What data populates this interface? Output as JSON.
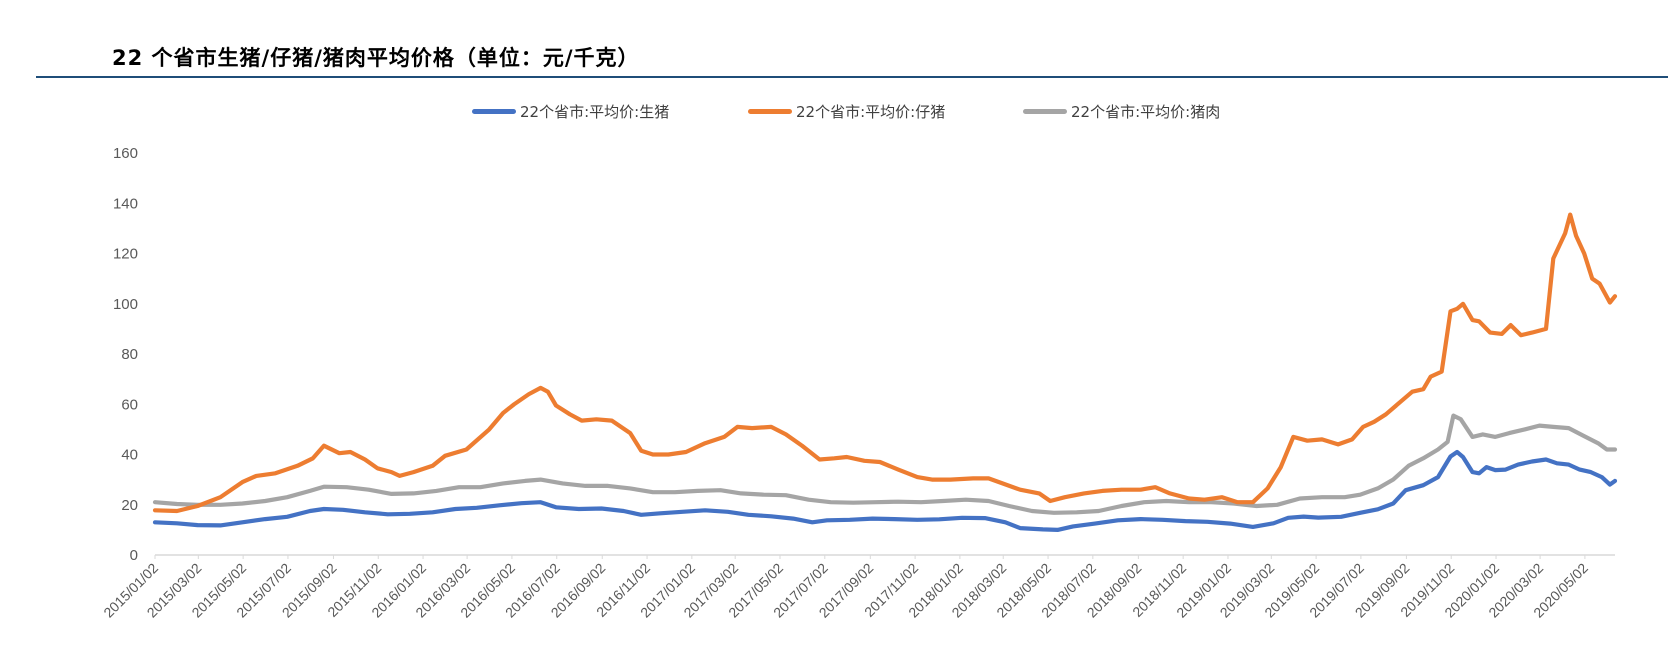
{
  "title": "22 个省市生猪/仔猪/猪肉平均价格（单位：元/千克）",
  "colors": {
    "hog": "#4472c4",
    "piglet": "#ed7d31",
    "pork": "#a5a5a5",
    "axis": "#d9d9d9",
    "title_rule": "#1f4e79"
  },
  "chart_data": {
    "type": "line",
    "title": "22 个省市生猪/仔猪/猪肉平均价格（单位：元/千克）",
    "xlabel": "",
    "ylabel": "",
    "ylim": [
      0,
      160
    ],
    "yticks": [
      0,
      20,
      40,
      60,
      80,
      100,
      120,
      140,
      160
    ],
    "grid": false,
    "legend_position": "top-center",
    "x_range": [
      "2015/01/02",
      "2020/06/12"
    ],
    "xtick_labels": [
      "2015/01/02",
      "2015/03/02",
      "2015/05/02",
      "2015/07/02",
      "2015/09/02",
      "2015/11/02",
      "2016/01/02",
      "2016/03/02",
      "2016/05/02",
      "2016/07/02",
      "2016/09/02",
      "2016/11/02",
      "2017/01/02",
      "2017/03/02",
      "2017/05/02",
      "2017/07/02",
      "2017/09/02",
      "2017/11/02",
      "2018/01/02",
      "2018/03/02",
      "2018/05/02",
      "2018/07/02",
      "2018/09/02",
      "2018/11/02",
      "2019/01/02",
      "2019/03/02",
      "2019/05/02",
      "2019/07/02",
      "2019/09/02",
      "2019/11/02",
      "2020/01/02",
      "2020/03/02",
      "2020/05/02"
    ],
    "series": [
      {
        "name": "22个省市:平均价:生猪",
        "color_key": "hog",
        "points": [
          [
            "2015/01/02",
            13.0
          ],
          [
            "2015/02/01",
            12.6
          ],
          [
            "2015/03/01",
            11.9
          ],
          [
            "2015/04/01",
            11.8
          ],
          [
            "2015/05/01",
            13.0
          ],
          [
            "2015/06/01",
            14.3
          ],
          [
            "2015/07/01",
            15.2
          ],
          [
            "2015/08/01",
            17.5
          ],
          [
            "2015/08/20",
            18.3
          ],
          [
            "2015/09/15",
            18.0
          ],
          [
            "2015/10/15",
            17.0
          ],
          [
            "2015/11/15",
            16.2
          ],
          [
            "2015/12/15",
            16.4
          ],
          [
            "2016/01/15",
            17.0
          ],
          [
            "2016/02/15",
            18.3
          ],
          [
            "2016/03/15",
            18.8
          ],
          [
            "2016/04/15",
            19.8
          ],
          [
            "2016/05/15",
            20.6
          ],
          [
            "2016/06/10",
            21.0
          ],
          [
            "2016/07/01",
            19.0
          ],
          [
            "2016/08/01",
            18.3
          ],
          [
            "2016/09/01",
            18.5
          ],
          [
            "2016/10/01",
            17.5
          ],
          [
            "2016/10/25",
            16.0
          ],
          [
            "2016/11/20",
            16.6
          ],
          [
            "2016/12/20",
            17.2
          ],
          [
            "2017/01/20",
            17.8
          ],
          [
            "2017/02/20",
            17.2
          ],
          [
            "2017/03/20",
            16.0
          ],
          [
            "2017/04/20",
            15.4
          ],
          [
            "2017/05/20",
            14.5
          ],
          [
            "2017/06/15",
            13.0
          ],
          [
            "2017/07/05",
            13.8
          ],
          [
            "2017/08/05",
            14.0
          ],
          [
            "2017/09/05",
            14.5
          ],
          [
            "2017/10/05",
            14.3
          ],
          [
            "2017/11/05",
            14.0
          ],
          [
            "2017/12/05",
            14.2
          ],
          [
            "2018/01/05",
            14.8
          ],
          [
            "2018/02/05",
            14.7
          ],
          [
            "2018/03/05",
            13.0
          ],
          [
            "2018/03/25",
            10.7
          ],
          [
            "2018/04/25",
            10.2
          ],
          [
            "2018/05/15",
            10.0
          ],
          [
            "2018/06/05",
            11.4
          ],
          [
            "2018/07/05",
            12.5
          ],
          [
            "2018/08/05",
            13.8
          ],
          [
            "2018/09/05",
            14.3
          ],
          [
            "2018/10/05",
            14.0
          ],
          [
            "2018/11/05",
            13.5
          ],
          [
            "2018/12/05",
            13.2
          ],
          [
            "2019/01/05",
            12.5
          ],
          [
            "2019/02/05",
            11.2
          ],
          [
            "2019/03/05",
            12.6
          ],
          [
            "2019/03/25",
            14.8
          ],
          [
            "2019/04/15",
            15.3
          ],
          [
            "2019/05/05",
            14.9
          ],
          [
            "2019/06/05",
            15.2
          ],
          [
            "2019/07/01",
            16.8
          ],
          [
            "2019/07/25",
            18.2
          ],
          [
            "2019/08/15",
            20.5
          ],
          [
            "2019/09/01",
            25.8
          ],
          [
            "2019/09/25",
            27.8
          ],
          [
            "2019/10/15",
            31.0
          ],
          [
            "2019/11/01",
            39.2
          ],
          [
            "2019/11/10",
            41.0
          ],
          [
            "2019/11/18",
            39.0
          ],
          [
            "2019/12/01",
            33.0
          ],
          [
            "2019/12/10",
            32.5
          ],
          [
            "2019/12/20",
            35.0
          ],
          [
            "2020/01/01",
            33.8
          ],
          [
            "2020/01/15",
            34.0
          ],
          [
            "2020/02/01",
            36.0
          ],
          [
            "2020/02/20",
            37.2
          ],
          [
            "2020/03/10",
            38.0
          ],
          [
            "2020/03/25",
            36.5
          ],
          [
            "2020/04/10",
            36.0
          ],
          [
            "2020/04/25",
            34.0
          ],
          [
            "2020/05/10",
            33.0
          ],
          [
            "2020/05/25",
            31.0
          ],
          [
            "2020/06/05",
            28.0
          ],
          [
            "2020/06/12",
            29.5
          ]
        ]
      },
      {
        "name": "22个省市:平均价:仔猪",
        "color_key": "piglet",
        "points": [
          [
            "2015/01/02",
            17.8
          ],
          [
            "2015/02/01",
            17.5
          ],
          [
            "2015/03/01",
            19.5
          ],
          [
            "2015/04/01",
            23.0
          ],
          [
            "2015/05/01",
            29.0
          ],
          [
            "2015/05/20",
            31.5
          ],
          [
            "2015/06/15",
            32.5
          ],
          [
            "2015/07/15",
            35.5
          ],
          [
            "2015/08/05",
            38.5
          ],
          [
            "2015/08/20",
            43.5
          ],
          [
            "2015/09/10",
            40.5
          ],
          [
            "2015/09/25",
            41.0
          ],
          [
            "2015/10/15",
            38.0
          ],
          [
            "2015/11/01",
            34.5
          ],
          [
            "2015/11/20",
            33.0
          ],
          [
            "2015/12/01",
            31.5
          ],
          [
            "2015/12/20",
            33.0
          ],
          [
            "2016/01/15",
            35.5
          ],
          [
            "2016/02/01",
            39.5
          ],
          [
            "2016/03/01",
            42.0
          ],
          [
            "2016/04/01",
            50.0
          ],
          [
            "2016/04/20",
            56.5
          ],
          [
            "2016/05/05",
            60.0
          ],
          [
            "2016/05/25",
            64.0
          ],
          [
            "2016/06/10",
            66.5
          ],
          [
            "2016/06/20",
            65.0
          ],
          [
            "2016/07/01",
            59.5
          ],
          [
            "2016/07/20",
            56.0
          ],
          [
            "2016/08/05",
            53.5
          ],
          [
            "2016/08/25",
            54.0
          ],
          [
            "2016/09/15",
            53.5
          ],
          [
            "2016/10/10",
            48.5
          ],
          [
            "2016/10/25",
            41.5
          ],
          [
            "2016/11/10",
            40.0
          ],
          [
            "2016/12/01",
            40.0
          ],
          [
            "2016/12/25",
            41.0
          ],
          [
            "2017/01/20",
            44.5
          ],
          [
            "2017/02/15",
            47.0
          ],
          [
            "2017/03/05",
            51.0
          ],
          [
            "2017/03/25",
            50.5
          ],
          [
            "2017/04/20",
            51.0
          ],
          [
            "2017/05/10",
            48.0
          ],
          [
            "2017/06/01",
            43.5
          ],
          [
            "2017/06/25",
            38.0
          ],
          [
            "2017/07/15",
            38.5
          ],
          [
            "2017/08/01",
            39.0
          ],
          [
            "2017/08/25",
            37.5
          ],
          [
            "2017/09/15",
            37.0
          ],
          [
            "2017/10/10",
            34.0
          ],
          [
            "2017/11/05",
            31.0
          ],
          [
            "2017/11/25",
            30.0
          ],
          [
            "2017/12/20",
            30.0
          ],
          [
            "2018/01/20",
            30.5
          ],
          [
            "2018/02/10",
            30.5
          ],
          [
            "2018/03/01",
            28.5
          ],
          [
            "2018/03/25",
            26.0
          ],
          [
            "2018/04/20",
            24.5
          ],
          [
            "2018/05/05",
            21.5
          ],
          [
            "2018/05/25",
            23.0
          ],
          [
            "2018/06/20",
            24.5
          ],
          [
            "2018/07/15",
            25.5
          ],
          [
            "2018/08/10",
            26.0
          ],
          [
            "2018/09/05",
            26.0
          ],
          [
            "2018/09/25",
            27.0
          ],
          [
            "2018/10/15",
            24.5
          ],
          [
            "2018/11/10",
            22.5
          ],
          [
            "2018/12/01",
            22.0
          ],
          [
            "2018/12/25",
            23.0
          ],
          [
            "2019/01/15",
            21.0
          ],
          [
            "2019/02/05",
            21.0
          ],
          [
            "2019/02/25",
            26.5
          ],
          [
            "2019/03/15",
            35.0
          ],
          [
            "2019/04/01",
            47.0
          ],
          [
            "2019/04/20",
            45.5
          ],
          [
            "2019/05/10",
            46.0
          ],
          [
            "2019/06/01",
            44.0
          ],
          [
            "2019/06/20",
            46.0
          ],
          [
            "2019/07/05",
            51.0
          ],
          [
            "2019/07/20",
            53.0
          ],
          [
            "2019/08/05",
            56.0
          ],
          [
            "2019/08/25",
            61.0
          ],
          [
            "2019/09/10",
            65.0
          ],
          [
            "2019/09/25",
            66.0
          ],
          [
            "2019/10/05",
            71.0
          ],
          [
            "2019/10/20",
            73.0
          ],
          [
            "2019/11/01",
            97.0
          ],
          [
            "2019/11/10",
            98.0
          ],
          [
            "2019/11/18",
            100.0
          ],
          [
            "2019/12/01",
            93.5
          ],
          [
            "2019/12/10",
            93.0
          ],
          [
            "2019/12/25",
            88.5
          ],
          [
            "2020/01/10",
            88.0
          ],
          [
            "2020/01/22",
            91.5
          ],
          [
            "2020/02/05",
            87.5
          ],
          [
            "2020/02/20",
            88.5
          ],
          [
            "2020/03/10",
            90.0
          ],
          [
            "2020/03/20",
            118.0
          ],
          [
            "2020/04/05",
            128.0
          ],
          [
            "2020/04/12",
            135.5
          ],
          [
            "2020/04/20",
            127.0
          ],
          [
            "2020/05/01",
            120.0
          ],
          [
            "2020/05/12",
            110.0
          ],
          [
            "2020/05/22",
            108.0
          ],
          [
            "2020/06/05",
            100.5
          ],
          [
            "2020/06/12",
            103.0
          ]
        ]
      },
      {
        "name": "22个省市:平均价:猪肉",
        "color_key": "pork",
        "points": [
          [
            "2015/01/02",
            21.0
          ],
          [
            "2015/02/01",
            20.3
          ],
          [
            "2015/03/01",
            20.0
          ],
          [
            "2015/04/01",
            20.0
          ],
          [
            "2015/05/01",
            20.5
          ],
          [
            "2015/06/01",
            21.5
          ],
          [
            "2015/07/01",
            23.0
          ],
          [
            "2015/08/01",
            25.5
          ],
          [
            "2015/08/20",
            27.2
          ],
          [
            "2015/09/20",
            27.0
          ],
          [
            "2015/10/20",
            26.0
          ],
          [
            "2015/11/20",
            24.3
          ],
          [
            "2015/12/20",
            24.5
          ],
          [
            "2016/01/20",
            25.5
          ],
          [
            "2016/02/20",
            27.0
          ],
          [
            "2016/03/20",
            27.0
          ],
          [
            "2016/04/20",
            28.5
          ],
          [
            "2016/05/20",
            29.5
          ],
          [
            "2016/06/10",
            30.0
          ],
          [
            "2016/07/10",
            28.5
          ],
          [
            "2016/08/10",
            27.5
          ],
          [
            "2016/09/10",
            27.5
          ],
          [
            "2016/10/10",
            26.5
          ],
          [
            "2016/11/10",
            25.0
          ],
          [
            "2016/12/10",
            25.0
          ],
          [
            "2017/01/10",
            25.5
          ],
          [
            "2017/02/10",
            25.8
          ],
          [
            "2017/03/10",
            24.5
          ],
          [
            "2017/04/10",
            24.0
          ],
          [
            "2017/05/10",
            23.8
          ],
          [
            "2017/06/10",
            22.0
          ],
          [
            "2017/07/10",
            21.0
          ],
          [
            "2017/08/10",
            20.8
          ],
          [
            "2017/09/10",
            21.0
          ],
          [
            "2017/10/10",
            21.2
          ],
          [
            "2017/11/10",
            21.0
          ],
          [
            "2017/12/10",
            21.5
          ],
          [
            "2018/01/10",
            22.0
          ],
          [
            "2018/02/10",
            21.5
          ],
          [
            "2018/03/10",
            19.5
          ],
          [
            "2018/04/10",
            17.5
          ],
          [
            "2018/05/10",
            16.8
          ],
          [
            "2018/06/10",
            17.0
          ],
          [
            "2018/07/10",
            17.5
          ],
          [
            "2018/08/10",
            19.5
          ],
          [
            "2018/09/10",
            21.0
          ],
          [
            "2018/10/10",
            21.5
          ],
          [
            "2018/11/10",
            21.0
          ],
          [
            "2018/12/10",
            21.0
          ],
          [
            "2019/01/10",
            20.5
          ],
          [
            "2019/02/10",
            19.5
          ],
          [
            "2019/03/10",
            20.0
          ],
          [
            "2019/04/10",
            22.5
          ],
          [
            "2019/05/10",
            23.0
          ],
          [
            "2019/06/10",
            23.0
          ],
          [
            "2019/07/01",
            24.0
          ],
          [
            "2019/07/25",
            26.5
          ],
          [
            "2019/08/15",
            30.0
          ],
          [
            "2019/09/05",
            35.5
          ],
          [
            "2019/09/25",
            38.5
          ],
          [
            "2019/10/15",
            42.0
          ],
          [
            "2019/10/28",
            45.0
          ],
          [
            "2019/11/05",
            55.5
          ],
          [
            "2019/11/15",
            54.0
          ],
          [
            "2019/12/01",
            47.0
          ],
          [
            "2019/12/15",
            48.0
          ],
          [
            "2020/01/01",
            47.0
          ],
          [
            "2020/01/20",
            48.5
          ],
          [
            "2020/02/10",
            50.0
          ],
          [
            "2020/03/01",
            51.5
          ],
          [
            "2020/03/20",
            51.0
          ],
          [
            "2020/04/10",
            50.5
          ],
          [
            "2020/04/30",
            47.5
          ],
          [
            "2020/05/20",
            44.5
          ],
          [
            "2020/06/01",
            42.0
          ],
          [
            "2020/06/12",
            42.0
          ]
        ]
      }
    ]
  }
}
